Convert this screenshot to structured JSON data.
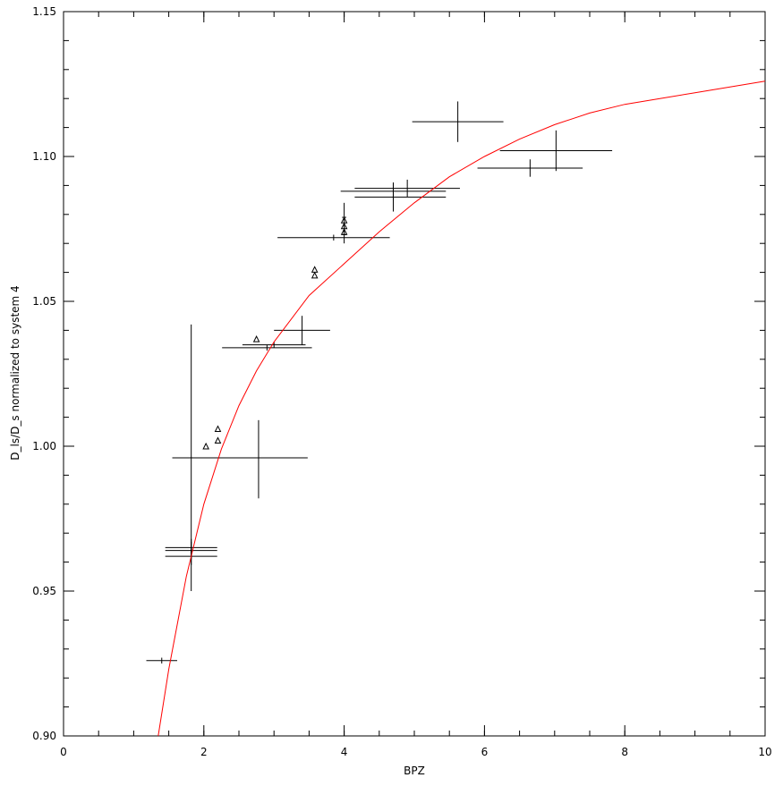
{
  "chart_data": {
    "type": "scatter",
    "title": "",
    "xlabel": "BPZ",
    "ylabel": "D_ls/D_s normalized to system 4",
    "xlim": [
      0,
      10
    ],
    "ylim": [
      0.9,
      1.15
    ],
    "x_ticks": [
      0,
      2,
      4,
      6,
      8,
      10
    ],
    "x_tick_labels": [
      "0",
      "2",
      "4",
      "6",
      "8",
      "10"
    ],
    "x_minor_step": 0.5,
    "y_ticks": [
      0.9,
      0.95,
      1.0,
      1.05,
      1.1,
      1.15
    ],
    "y_tick_labels": [
      "0.90",
      "0.95",
      "1.00",
      "1.05",
      "1.10",
      "1.15"
    ],
    "y_minor_step": 0.01,
    "grid": false,
    "colors": {
      "axes": "#000000",
      "data": "#000000",
      "fit": "#ff0000"
    },
    "error_points": [
      {
        "x": 1.4,
        "y": 0.926,
        "xerr": [
          0.22,
          0.22
        ],
        "yerr": [
          0.001,
          0.001
        ]
      },
      {
        "x": 1.82,
        "y": 0.996,
        "xerr": [
          0.02,
          0.02
        ],
        "yerr": [
          0.046,
          0.046
        ]
      },
      {
        "x": 1.82,
        "y": 0.962,
        "xerr": [
          0.37,
          0.37
        ],
        "yerr": [
          0.003,
          0.003
        ]
      },
      {
        "x": 1.82,
        "y": 0.964,
        "xerr": [
          0.37,
          0.37
        ],
        "yerr": [
          0.003,
          0.003
        ]
      },
      {
        "x": 1.82,
        "y": 0.965,
        "xerr": [
          0.37,
          0.37
        ],
        "yerr": [
          0.003,
          0.003
        ]
      },
      {
        "x": 2.78,
        "y": 0.996,
        "xerr": [
          1.23,
          0.7
        ],
        "yerr": [
          0.014,
          0.013
        ]
      },
      {
        "x": 2.9,
        "y": 1.034,
        "xerr": [
          0.64,
          0.64
        ],
        "yerr": [
          0.001,
          0.001
        ]
      },
      {
        "x": 3.0,
        "y": 1.035,
        "xerr": [
          0.45,
          0.45
        ],
        "yerr": [
          0.001,
          0.001
        ]
      },
      {
        "x": 3.4,
        "y": 1.04,
        "xerr": [
          0.4,
          0.4
        ],
        "yerr": [
          0.005,
          0.005
        ]
      },
      {
        "x": 3.85,
        "y": 1.072,
        "xerr": [
          0.8,
          0.8
        ],
        "yerr": [
          0.001,
          0.001
        ]
      },
      {
        "x": 4.0,
        "y": 1.073,
        "xerr": [
          0.03,
          0.03
        ],
        "yerr": [
          0.003,
          0.003
        ]
      },
      {
        "x": 4.0,
        "y": 1.079,
        "xerr": [
          0.03,
          0.03
        ],
        "yerr": [
          0.005,
          0.005
        ]
      },
      {
        "x": 4.7,
        "y": 1.086,
        "xerr": [
          0.55,
          0.75
        ],
        "yerr": [
          0.005,
          0.005
        ]
      },
      {
        "x": 4.7,
        "y": 1.088,
        "xerr": [
          0.75,
          0.75
        ],
        "yerr": [
          0.003,
          0.003
        ]
      },
      {
        "x": 4.9,
        "y": 1.089,
        "xerr": [
          0.75,
          0.75
        ],
        "yerr": [
          0.003,
          0.003
        ]
      },
      {
        "x": 5.62,
        "y": 1.112,
        "xerr": [
          0.65,
          0.65
        ],
        "yerr": [
          0.007,
          0.007
        ]
      },
      {
        "x": 6.65,
        "y": 1.096,
        "xerr": [
          0.75,
          0.75
        ],
        "yerr": [
          0.003,
          0.003
        ]
      },
      {
        "x": 7.02,
        "y": 1.102,
        "xerr": [
          0.8,
          0.8
        ],
        "yerr": [
          0.007,
          0.007
        ]
      }
    ],
    "triangle_points": [
      {
        "x": 2.03,
        "y": 1.0
      },
      {
        "x": 2.2,
        "y": 1.002
      },
      {
        "x": 2.2,
        "y": 1.006
      },
      {
        "x": 2.75,
        "y": 1.037
      },
      {
        "x": 3.58,
        "y": 1.059
      },
      {
        "x": 3.58,
        "y": 1.061
      },
      {
        "x": 4.0,
        "y": 1.074
      },
      {
        "x": 4.0,
        "y": 1.076
      },
      {
        "x": 4.0,
        "y": 1.078
      }
    ],
    "fit_curve": {
      "x": [
        1.35,
        1.5,
        1.75,
        2.0,
        2.25,
        2.5,
        2.75,
        3.0,
        3.5,
        4.0,
        4.5,
        5.0,
        5.5,
        6.0,
        6.5,
        7.0,
        7.5,
        8.0,
        8.5,
        9.0,
        9.5,
        10.0
      ],
      "y": [
        0.9,
        0.923,
        0.955,
        0.98,
        0.999,
        1.014,
        1.026,
        1.036,
        1.052,
        1.063,
        1.074,
        1.084,
        1.093,
        1.1,
        1.106,
        1.111,
        1.115,
        1.118,
        1.12,
        1.122,
        1.124,
        1.126
      ]
    }
  }
}
